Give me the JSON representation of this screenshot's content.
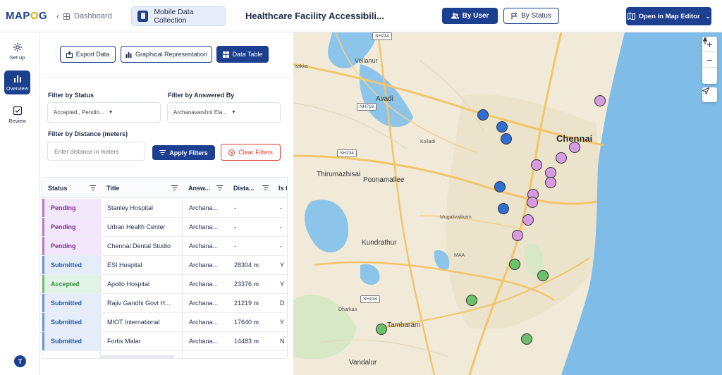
{
  "app": {
    "logo_prefix": "MAP",
    "logo_o": "O",
    "logo_suffix": "G"
  },
  "header": {
    "back_label": "Dashboard",
    "module_label": "Mobile Data Collection",
    "title": "Healthcare Facility Accessibili...",
    "by_user_label": "By User",
    "by_status_label": "By Status",
    "open_editor_label": "Open in Map Editor"
  },
  "rail": {
    "items": [
      {
        "label": "Set up",
        "icon": "gear-icon"
      },
      {
        "label": "Overview",
        "icon": "bar-chart-icon",
        "active": true
      },
      {
        "label": "Review",
        "icon": "checkbox-icon"
      }
    ],
    "avatar": "T"
  },
  "panel": {
    "view_buttons": [
      {
        "label": "Export Data",
        "icon": "export-icon"
      },
      {
        "label": "Graphical Representation",
        "icon": "bar-chart-icon"
      },
      {
        "label": "Data Table",
        "icon": "grid-icon",
        "active": true
      }
    ],
    "filters": {
      "status_label": "Filter by Status",
      "status_value": "Accepted , Pendin...",
      "answered_label": "Filter by Answered By",
      "answered_value": "Archanavarshni Ela...",
      "distance_label": "Filter by Distance (meters)",
      "distance_placeholder": "Enter distance in meters",
      "apply_label": "Apply Filters",
      "clear_label": "Clear Filters"
    }
  },
  "table": {
    "columns": [
      "Status",
      "Title",
      "Answ...",
      "Dista...",
      "Is t"
    ],
    "rows": [
      {
        "status": "Pending",
        "title": "Stanley Hospital",
        "answered": "Archana...",
        "distance": "-",
        "ist": "-"
      },
      {
        "status": "Pending",
        "title": "Urban Health Center",
        "answered": "Archana...",
        "distance": "-",
        "ist": "-"
      },
      {
        "status": "Pending",
        "title": "Chennai Dental Studio",
        "answered": "Archana...",
        "distance": "-",
        "ist": "-"
      },
      {
        "status": "Submitted",
        "title": "ESI Hospital",
        "answered": "Archana...",
        "distance": "28304 m",
        "ist": "Y"
      },
      {
        "status": "Accepted",
        "title": "Apollo Hospital",
        "answered": "Archana...",
        "distance": "23376 m",
        "ist": "Y"
      },
      {
        "status": "Submitted",
        "title": "Rajiv Gandhi Govt H...",
        "answered": "Archana...",
        "distance": "21219 m",
        "ist": "D"
      },
      {
        "status": "Submitted",
        "title": "MIOT International",
        "answered": "Archana...",
        "distance": "17640 m",
        "ist": "Y"
      },
      {
        "status": "Submitted",
        "title": "Fortis Malar",
        "answered": "Archana...",
        "distance": "14483 m",
        "ist": "N"
      }
    ]
  },
  "map": {
    "labels": {
      "chennai": "Chennai",
      "avadi": "Avadi",
      "vellanur": "Vellanur",
      "thirumazhisai": "Thirumazhisai",
      "poonamallee": "Poonamallee",
      "kundrathur": "Kundrathur",
      "tambaram": "Tambaram",
      "vandalur": "Vandalur",
      "dharkas": "Dharkas",
      "kolladi": "Kolladi",
      "mugalivakkam": "Mugalivakkam",
      "maa": "MAA",
      "aakka": "aakka"
    },
    "roads": [
      "SH234",
      "NH716",
      "SH234",
      "SH234"
    ],
    "colors": {
      "pending": "#d69be0",
      "submitted": "#2f6fd1",
      "accepted": "#6cbf6b",
      "water": "#7fbde8",
      "brand": "#1c3f8f"
    }
  }
}
